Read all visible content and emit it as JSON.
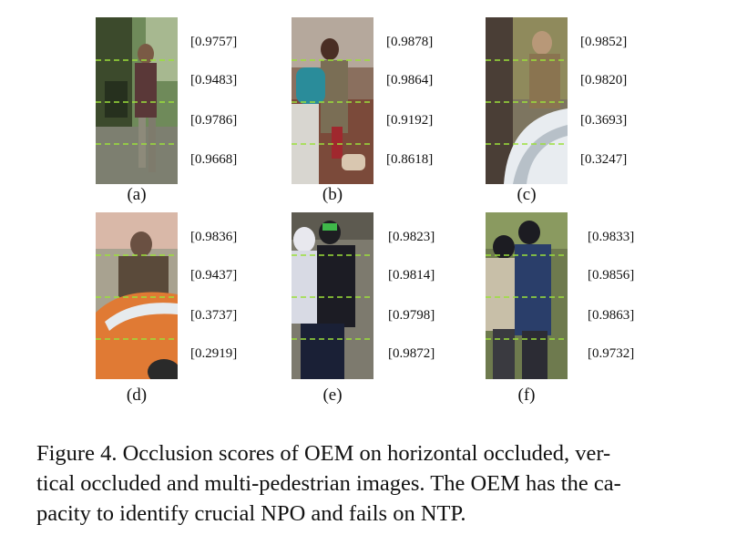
{
  "panels": [
    {
      "label": "(a)",
      "scores": [
        "[0.9757]",
        "[0.9483]",
        "[0.9786]",
        "[0.9668]"
      ]
    },
    {
      "label": "(b)",
      "scores": [
        "[0.9878]",
        "[0.9864]",
        "[0.9192]",
        "[0.8618]"
      ]
    },
    {
      "label": "(c)",
      "scores": [
        "[0.9852]",
        "[0.9820]",
        "[0.3693]",
        "[0.3247]"
      ]
    },
    {
      "label": "(d)",
      "scores": [
        "[0.9836]",
        "[0.9437]",
        "[0.3737]",
        "[0.2919]"
      ]
    },
    {
      "label": "(e)",
      "scores": [
        "[0.9823]",
        "[0.9814]",
        "[0.9798]",
        "[0.9872]"
      ]
    },
    {
      "label": "(f)",
      "scores": [
        "[0.9833]",
        "[0.9856]",
        "[0.9863]",
        "[0.9732]"
      ]
    }
  ],
  "caption": {
    "line1": "Figure 4.  Occlusion scores of OEM on horizontal occluded, ver-",
    "line2": "tical occluded and multi-pedestrian images. The OEM has the ca-",
    "line3": "pacity to identify crucial NPO and fails on NTP."
  },
  "colors": {
    "divider": "#9be03a"
  }
}
